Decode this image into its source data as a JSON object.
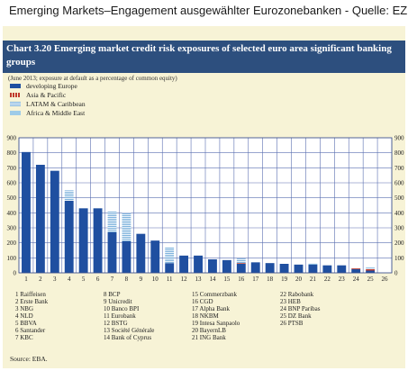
{
  "page": {
    "title": "Emerging Markets–Engagement ausgewählter Eurozonebanken - Quelle: EZB"
  },
  "chart": {
    "title": "Chart 3.20 Emerging market credit risk exposures of selected euro area significant banking groups",
    "subtitle": "(June 2013; exposure at default as a percentage of common equity)",
    "source": "Source: EBA."
  },
  "legend": [
    {
      "label": "developing Europe",
      "color": "#1f4fa0"
    },
    {
      "label": "Asia & Pacific",
      "color": "#c0392b"
    },
    {
      "label": "LATAM & Caribbean",
      "color": "#7fb3dc"
    },
    {
      "label": "Africa & Middle East",
      "color": "#9ecbe8"
    }
  ],
  "bank_columns": [
    [
      "1 Raiffeisen",
      "2 Erste Bank",
      "3 NBG",
      "4 NLD",
      "5 BBVA",
      "6 Santander",
      "7 KBC"
    ],
    [
      "8 BCP",
      "9 Unicredit",
      "10 Banco BPI",
      "11 Eurobank",
      "12 BSTG",
      "13 Société Générale",
      "14 Bank of Cyprus"
    ],
    [
      "15 Commerzbank",
      "16 CGD",
      "17 Alpha Bank",
      "18 NKBM",
      "19 Intesa Sanpaolo",
      "20 BayernLB",
      "21 ING Bank"
    ],
    [
      "22 Rabobank",
      "23 HEB",
      "24 BNP Paribas",
      "25 DZ Bank",
      "26 PTSB"
    ]
  ],
  "chart_data": {
    "type": "bar",
    "title": "Chart 3.20 Emerging market credit risk exposures of selected euro area significant banking groups",
    "subtitle": "(June 2013; exposure at default as a percentage of common equity)",
    "categories": [
      "1",
      "2",
      "3",
      "4",
      "5",
      "6",
      "7",
      "8",
      "9",
      "10",
      "11",
      "12",
      "13",
      "14",
      "15",
      "16",
      "17",
      "18",
      "19",
      "20",
      "21",
      "22",
      "23",
      "24",
      "25",
      "26"
    ],
    "ylim": [
      0,
      900
    ],
    "yticks": [
      0,
      100,
      200,
      300,
      400,
      500,
      600,
      700,
      800,
      900
    ],
    "stacked": true,
    "grid": true,
    "legend_position": "top-left",
    "series": [
      {
        "name": "developing Europe",
        "color": "#1f4fa0",
        "values": [
          805,
          720,
          680,
          480,
          430,
          430,
          270,
          210,
          260,
          215,
          65,
          115,
          115,
          90,
          85,
          60,
          70,
          65,
          60,
          55,
          55,
          50,
          50,
          25,
          15,
          0
        ]
      },
      {
        "name": "Asia & Pacific",
        "color": "#c0392b",
        "values": [
          0,
          0,
          0,
          0,
          0,
          0,
          0,
          0,
          0,
          0,
          0,
          0,
          0,
          0,
          0,
          5,
          0,
          0,
          0,
          0,
          0,
          0,
          0,
          5,
          10,
          0
        ]
      },
      {
        "name": "LATAM & Caribbean",
        "color": "#7fb3dc",
        "values": [
          0,
          0,
          0,
          70,
          0,
          0,
          140,
          190,
          0,
          0,
          105,
          0,
          0,
          0,
          0,
          30,
          0,
          0,
          0,
          0,
          10,
          0,
          0,
          0,
          10,
          0
        ]
      },
      {
        "name": "Africa & Middle East",
        "color": "#9ecbe8",
        "values": [
          0,
          0,
          0,
          0,
          0,
          0,
          0,
          0,
          0,
          0,
          0,
          0,
          0,
          0,
          0,
          0,
          0,
          0,
          0,
          0,
          0,
          0,
          0,
          0,
          0,
          0
        ]
      }
    ]
  }
}
